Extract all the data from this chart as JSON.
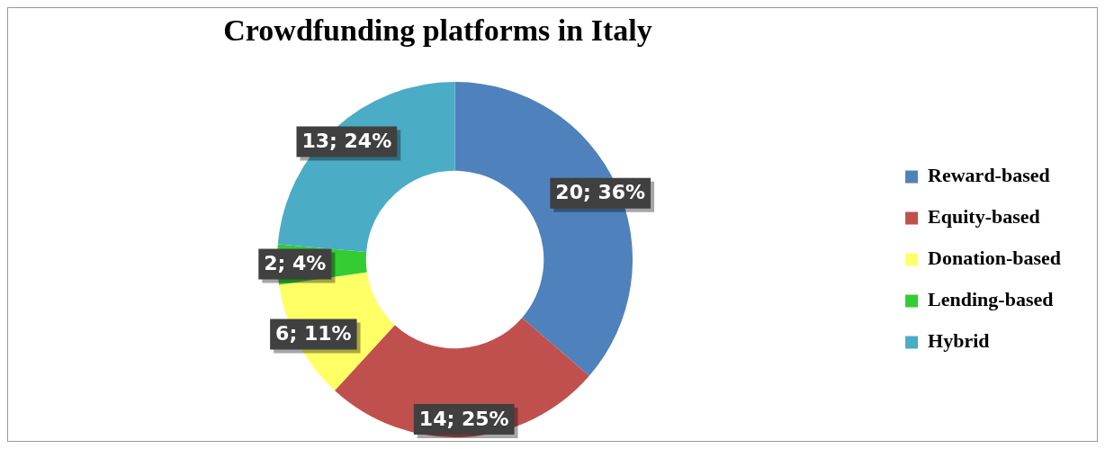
{
  "chart_data": {
    "type": "donut",
    "title": "Crowdfunding platforms in Italy",
    "categories": [
      "Reward-based",
      "Equity-based",
      "Donation-based",
      "Lending-based",
      "Hybrid"
    ],
    "values": [
      20,
      14,
      6,
      2,
      13
    ],
    "colors": [
      "#4f81bd",
      "#c0504d",
      "#ffff66",
      "#33cc33",
      "#4bacc6"
    ],
    "value_labels": [
      "20; 36%",
      "14; 25%",
      "6; 11%",
      "2; 4%",
      "13; 24%"
    ],
    "legend": "right"
  }
}
